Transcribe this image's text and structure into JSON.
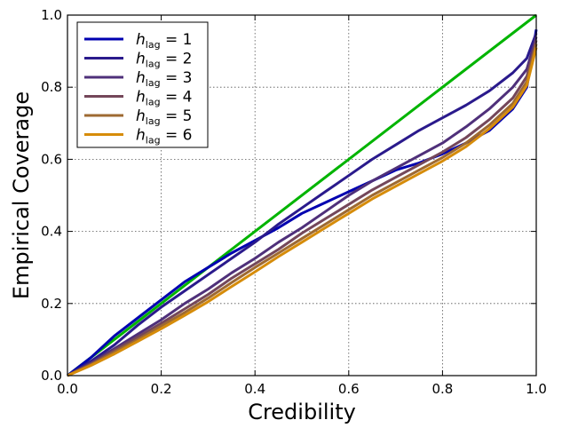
{
  "chart_data": {
    "type": "line",
    "title": "",
    "xlabel": "Credibility",
    "ylabel": "Empirical Coverage",
    "xlim": [
      0,
      1
    ],
    "ylim": [
      0,
      1
    ],
    "xticks": [
      "0.0",
      "0.2",
      "0.4",
      "0.6",
      "0.8",
      "1.0"
    ],
    "yticks": [
      "0.0",
      "0.2",
      "0.4",
      "0.6",
      "0.8",
      "1.0"
    ],
    "grid": true,
    "legend_position": "top-left",
    "reference_line": {
      "x": [
        0,
        1
      ],
      "y": [
        0,
        1
      ],
      "color": "#00b400"
    },
    "x": [
      0,
      0.05,
      0.1,
      0.15,
      0.2,
      0.25,
      0.3,
      0.35,
      0.4,
      0.45,
      0.5,
      0.55,
      0.6,
      0.65,
      0.7,
      0.75,
      0.8,
      0.85,
      0.9,
      0.95,
      0.98,
      1.0
    ],
    "series": [
      {
        "name": "h",
        "subscript": "lag",
        "suffix": " = 1",
        "color": "#0000b0",
        "values": [
          0,
          0.05,
          0.11,
          0.16,
          0.21,
          0.26,
          0.3,
          0.34,
          0.375,
          0.41,
          0.45,
          0.48,
          0.51,
          0.54,
          0.57,
          0.59,
          0.615,
          0.645,
          0.68,
          0.74,
          0.8,
          0.96
        ]
      },
      {
        "name": "h",
        "subscript": "lag",
        "suffix": " = 2",
        "color": "#2a1a8c",
        "values": [
          0,
          0.04,
          0.085,
          0.14,
          0.19,
          0.235,
          0.28,
          0.325,
          0.37,
          0.42,
          0.465,
          0.51,
          0.555,
          0.6,
          0.64,
          0.68,
          0.715,
          0.75,
          0.79,
          0.84,
          0.88,
          0.95
        ]
      },
      {
        "name": "h",
        "subscript": "lag",
        "suffix": " = 3",
        "color": "#4f307a",
        "values": [
          0,
          0.035,
          0.075,
          0.115,
          0.155,
          0.2,
          0.24,
          0.285,
          0.325,
          0.37,
          0.41,
          0.455,
          0.5,
          0.54,
          0.575,
          0.61,
          0.645,
          0.69,
          0.74,
          0.8,
          0.85,
          0.94
        ]
      },
      {
        "name": "h",
        "subscript": "lag",
        "suffix": " = 4",
        "color": "#74475a",
        "values": [
          0,
          0.032,
          0.07,
          0.107,
          0.145,
          0.185,
          0.225,
          0.27,
          0.31,
          0.35,
          0.395,
          0.435,
          0.475,
          0.515,
          0.55,
          0.585,
          0.62,
          0.66,
          0.71,
          0.77,
          0.83,
          0.93
        ]
      },
      {
        "name": "h",
        "subscript": "lag",
        "suffix": " = 5",
        "color": "#9e6a32",
        "values": [
          0,
          0.03,
          0.065,
          0.1,
          0.138,
          0.175,
          0.215,
          0.258,
          0.3,
          0.34,
          0.38,
          0.42,
          0.46,
          0.5,
          0.535,
          0.57,
          0.605,
          0.645,
          0.695,
          0.755,
          0.815,
          0.92
        ]
      },
      {
        "name": "h",
        "subscript": "lag",
        "suffix": " = 6",
        "color": "#d68c0a",
        "values": [
          0,
          0.028,
          0.06,
          0.095,
          0.13,
          0.167,
          0.205,
          0.247,
          0.288,
          0.33,
          0.37,
          0.41,
          0.45,
          0.49,
          0.525,
          0.56,
          0.595,
          0.635,
          0.685,
          0.745,
          0.805,
          0.91
        ]
      }
    ]
  }
}
